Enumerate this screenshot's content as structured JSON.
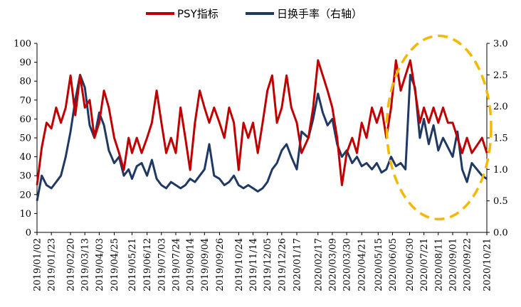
{
  "chart_data": {
    "type": "line",
    "legend_position": "top-center",
    "grid": false,
    "colors": {
      "psy": "#c00000",
      "turnover": "#1f3864",
      "highlight": "#f5b800"
    },
    "series": [
      {
        "name": "PSY指标",
        "axis": "left",
        "points": [
          [
            "2019/01/02",
            25
          ],
          [
            "2019/01/09",
            45
          ],
          [
            "2019/01/16",
            58
          ],
          [
            "2019/01/23",
            55
          ],
          [
            "2019/01/30",
            66
          ],
          [
            "2019/02/06",
            58
          ],
          [
            "2019/02/13",
            66
          ],
          [
            "2019/02/20",
            83
          ],
          [
            "2019/02/27",
            62
          ],
          [
            "2019/03/06",
            83
          ],
          [
            "2019/03/13",
            66
          ],
          [
            "2019/03/20",
            70
          ],
          [
            "2019/03/27",
            50
          ],
          [
            "2019/04/03",
            58
          ],
          [
            "2019/04/10",
            75
          ],
          [
            "2019/04/17",
            66
          ],
          [
            "2019/04/25",
            50
          ],
          [
            "2019/05/02",
            42
          ],
          [
            "2019/05/09",
            33
          ],
          [
            "2019/05/16",
            50
          ],
          [
            "2019/05/21",
            42
          ],
          [
            "2019/05/28",
            50
          ],
          [
            "2019/06/04",
            42
          ],
          [
            "2019/06/12",
            50
          ],
          [
            "2019/06/19",
            58
          ],
          [
            "2019/06/26",
            75
          ],
          [
            "2019/07/03",
            58
          ],
          [
            "2019/07/10",
            42
          ],
          [
            "2019/07/17",
            50
          ],
          [
            "2019/07/24",
            42
          ],
          [
            "2019/07/31",
            66
          ],
          [
            "2019/08/07",
            50
          ],
          [
            "2019/08/14",
            33
          ],
          [
            "2019/08/21",
            58
          ],
          [
            "2019/08/28",
            75
          ],
          [
            "2019/09/04",
            66
          ],
          [
            "2019/09/11",
            58
          ],
          [
            "2019/09/18",
            66
          ],
          [
            "2019/09/26",
            58
          ],
          [
            "2019/10/03",
            50
          ],
          [
            "2019/10/10",
            66
          ],
          [
            "2019/10/17",
            58
          ],
          [
            "2019/10/24",
            33
          ],
          [
            "2019/10/31",
            58
          ],
          [
            "2019/11/07",
            50
          ],
          [
            "2019/11/14",
            58
          ],
          [
            "2019/11/21",
            42
          ],
          [
            "2019/11/28",
            58
          ],
          [
            "2019/12/05",
            75
          ],
          [
            "2019/12/12",
            83
          ],
          [
            "2019/12/19",
            58
          ],
          [
            "2019/12/26",
            66
          ],
          [
            "2020/01/02",
            83
          ],
          [
            "2020/01/09",
            66
          ],
          [
            "2020/01/17",
            58
          ],
          [
            "2020/01/24",
            42
          ],
          [
            "2020/02/03",
            50
          ],
          [
            "2020/02/10",
            66
          ],
          [
            "2020/02/17",
            91
          ],
          [
            "2020/02/24",
            83
          ],
          [
            "2020/03/02",
            75
          ],
          [
            "2020/03/09",
            66
          ],
          [
            "2020/03/16",
            50
          ],
          [
            "2020/03/23",
            25
          ],
          [
            "2020/03/30",
            42
          ],
          [
            "2020/04/07",
            50
          ],
          [
            "2020/04/14",
            42
          ],
          [
            "2020/04/21",
            58
          ],
          [
            "2020/04/28",
            50
          ],
          [
            "2020/05/06",
            66
          ],
          [
            "2020/05/13",
            58
          ],
          [
            "2020/05/20",
            66
          ],
          [
            "2020/05/27",
            50
          ],
          [
            "2020/06/03",
            66
          ],
          [
            "2020/06/10",
            91
          ],
          [
            "2020/06/17",
            75
          ],
          [
            "2020/06/24",
            83
          ],
          [
            "2020/07/01",
            91
          ],
          [
            "2020/07/08",
            75
          ],
          [
            "2020/07/15",
            58
          ],
          [
            "2020/07/21",
            66
          ],
          [
            "2020/07/28",
            58
          ],
          [
            "2020/08/04",
            66
          ],
          [
            "2020/08/11",
            58
          ],
          [
            "2020/08/18",
            66
          ],
          [
            "2020/08/25",
            58
          ],
          [
            "2020/09/01",
            58
          ],
          [
            "2020/09/08",
            50
          ],
          [
            "2020/09/15",
            42
          ],
          [
            "2020/09/22",
            50
          ],
          [
            "2020/09/29",
            42
          ],
          [
            "2020/10/14",
            50
          ],
          [
            "2020/10/21",
            42
          ]
        ]
      },
      {
        "name": "日换手率（右轴）",
        "axis": "right",
        "points": [
          [
            "2019/01/02",
            0.5
          ],
          [
            "2019/01/09",
            0.9
          ],
          [
            "2019/01/16",
            0.75
          ],
          [
            "2019/01/23",
            0.7
          ],
          [
            "2019/01/30",
            0.8
          ],
          [
            "2019/02/06",
            0.9
          ],
          [
            "2019/02/13",
            1.2
          ],
          [
            "2019/02/20",
            1.6
          ],
          [
            "2019/02/27",
            2.1
          ],
          [
            "2019/03/06",
            2.5
          ],
          [
            "2019/03/13",
            2.3
          ],
          [
            "2019/03/20",
            1.7
          ],
          [
            "2019/03/27",
            1.5
          ],
          [
            "2019/04/03",
            1.9
          ],
          [
            "2019/04/10",
            1.7
          ],
          [
            "2019/04/17",
            1.3
          ],
          [
            "2019/04/25",
            1.1
          ],
          [
            "2019/05/02",
            1.2
          ],
          [
            "2019/05/09",
            0.9
          ],
          [
            "2019/05/16",
            1.0
          ],
          [
            "2019/05/21",
            0.85
          ],
          [
            "2019/05/28",
            1.05
          ],
          [
            "2019/06/04",
            1.1
          ],
          [
            "2019/06/12",
            0.9
          ],
          [
            "2019/06/19",
            1.15
          ],
          [
            "2019/06/26",
            0.85
          ],
          [
            "2019/07/03",
            0.75
          ],
          [
            "2019/07/10",
            0.7
          ],
          [
            "2019/07/17",
            0.8
          ],
          [
            "2019/07/24",
            0.75
          ],
          [
            "2019/07/31",
            0.7
          ],
          [
            "2019/08/07",
            0.75
          ],
          [
            "2019/08/14",
            0.85
          ],
          [
            "2019/08/21",
            0.8
          ],
          [
            "2019/08/28",
            0.9
          ],
          [
            "2019/09/04",
            1.0
          ],
          [
            "2019/09/11",
            1.4
          ],
          [
            "2019/09/18",
            0.9
          ],
          [
            "2019/09/26",
            0.85
          ],
          [
            "2019/10/03",
            0.75
          ],
          [
            "2019/10/10",
            0.8
          ],
          [
            "2019/10/17",
            0.9
          ],
          [
            "2019/10/24",
            0.75
          ],
          [
            "2019/10/31",
            0.7
          ],
          [
            "2019/11/07",
            0.75
          ],
          [
            "2019/11/14",
            0.7
          ],
          [
            "2019/11/21",
            0.65
          ],
          [
            "2019/11/28",
            0.7
          ],
          [
            "2019/12/05",
            0.8
          ],
          [
            "2019/12/12",
            1.0
          ],
          [
            "2019/12/19",
            1.1
          ],
          [
            "2019/12/26",
            1.3
          ],
          [
            "2020/01/02",
            1.4
          ],
          [
            "2020/01/09",
            1.2
          ],
          [
            "2020/01/17",
            1.0
          ],
          [
            "2020/01/24",
            1.6
          ],
          [
            "2020/02/03",
            1.5
          ],
          [
            "2020/02/10",
            1.8
          ],
          [
            "2020/02/17",
            2.2
          ],
          [
            "2020/02/24",
            1.9
          ],
          [
            "2020/03/02",
            1.7
          ],
          [
            "2020/03/09",
            1.8
          ],
          [
            "2020/03/16",
            1.4
          ],
          [
            "2020/03/23",
            1.2
          ],
          [
            "2020/03/30",
            1.3
          ],
          [
            "2020/04/07",
            1.1
          ],
          [
            "2020/04/14",
            1.2
          ],
          [
            "2020/04/21",
            1.05
          ],
          [
            "2020/04/28",
            1.1
          ],
          [
            "2020/05/06",
            1.0
          ],
          [
            "2020/05/13",
            1.1
          ],
          [
            "2020/05/20",
            0.95
          ],
          [
            "2020/05/27",
            1.0
          ],
          [
            "2020/06/03",
            1.2
          ],
          [
            "2020/06/10",
            1.05
          ],
          [
            "2020/06/17",
            1.1
          ],
          [
            "2020/06/24",
            1.0
          ],
          [
            "2020/07/01",
            2.5
          ],
          [
            "2020/07/08",
            2.3
          ],
          [
            "2020/07/15",
            1.5
          ],
          [
            "2020/07/21",
            1.8
          ],
          [
            "2020/07/28",
            1.4
          ],
          [
            "2020/08/04",
            1.7
          ],
          [
            "2020/08/11",
            1.3
          ],
          [
            "2020/08/18",
            1.5
          ],
          [
            "2020/08/25",
            1.35
          ],
          [
            "2020/09/01",
            1.2
          ],
          [
            "2020/09/08",
            1.6
          ],
          [
            "2020/09/15",
            1.0
          ],
          [
            "2020/09/22",
            0.8
          ],
          [
            "2020/09/29",
            1.1
          ],
          [
            "2020/10/14",
            0.9
          ],
          [
            "2020/10/21",
            0.85
          ]
        ]
      }
    ],
    "x_tick_labels": [
      "2019/01/02",
      "2019/01/23",
      "2019/02/20",
      "2019/03/13",
      "2019/04/03",
      "2019/04/25",
      "2019/05/21",
      "2019/06/12",
      "2019/07/03",
      "2019/07/24",
      "2019/08/14",
      "2019/09/04",
      "2019/09/26",
      "2019/10/24",
      "2019/11/14",
      "2019/12/05",
      "2019/12/26",
      "2020/01/17",
      "2020/02/17",
      "2020/03/09",
      "2020/03/30",
      "2020/04/21",
      "2020/05/15",
      "2020/06/05",
      "2020/06/30",
      "2020/07/21",
      "2020/08/11",
      "2020/09/01",
      "2020/09/22",
      "2020/10/21"
    ],
    "y_left": {
      "min": 0,
      "max": 100,
      "step": 10,
      "ticks": [
        "0",
        "10",
        "20",
        "30",
        "40",
        "50",
        "60",
        "70",
        "80",
        "90",
        "100"
      ]
    },
    "y_right": {
      "min": 0,
      "max": 3,
      "step": 0.5,
      "ticks": [
        "0.0",
        "0.5",
        "1.0",
        "1.5",
        "2.0",
        "2.5",
        "3.0"
      ]
    },
    "annotation": {
      "type": "dashed-ellipse",
      "x_from": "2020/06/05",
      "x_to": "2020/10/21",
      "y_left_from": 7,
      "y_left_to": 104
    }
  }
}
